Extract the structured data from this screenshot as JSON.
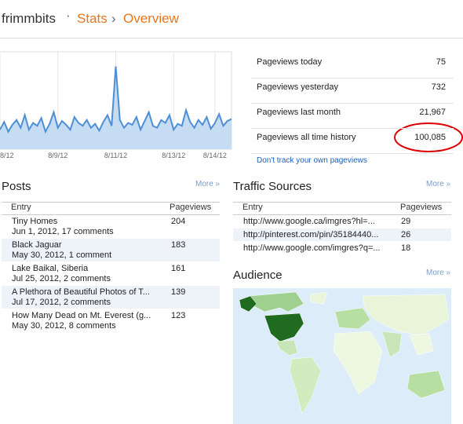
{
  "header": {
    "blog": "frimmbits",
    "separator": "·",
    "crumb": "Stats",
    "arrow": "›",
    "current": "Overview"
  },
  "chart": {
    "type": "area",
    "color": "#4d8fd6",
    "fill": "#c6dcf3",
    "ylim": [
      0,
      100
    ],
    "values": [
      20,
      28,
      18,
      25,
      30,
      22,
      35,
      20,
      27,
      24,
      32,
      18,
      26,
      38,
      22,
      29,
      25,
      20,
      33,
      27,
      24,
      30,
      22,
      26,
      19,
      28,
      35,
      24,
      85,
      30,
      22,
      27,
      25,
      33,
      20,
      29,
      38,
      24,
      22,
      30,
      27,
      35,
      20,
      26,
      24,
      40,
      28,
      22,
      30,
      25,
      33,
      21,
      27,
      36,
      24,
      29,
      31
    ],
    "xticks": [
      {
        "value": 0,
        "label": "8/12"
      },
      {
        "value": 14,
        "label": "8/9/12"
      },
      {
        "value": 28,
        "label": "8/11/12"
      },
      {
        "value": 42,
        "label": "8/13/12"
      },
      {
        "value": 52,
        "label": "8/14/12"
      }
    ]
  },
  "stats": [
    {
      "label": "Pageviews today",
      "value": "75"
    },
    {
      "label": "Pageviews yesterday",
      "value": "732"
    },
    {
      "label": "Pageviews last month",
      "value": "21,967"
    },
    {
      "label": "Pageviews all time history",
      "value": "100,085"
    }
  ],
  "track_link": "Don't track your own pageviews",
  "posts": {
    "title": "Posts",
    "more": "More »",
    "columns": [
      "Entry",
      "Pageviews"
    ],
    "rows": [
      {
        "title": "Tiny Homes",
        "meta": "Jun 1, 2012, 17 comments",
        "views": "204"
      },
      {
        "title": "Black Jaguar",
        "meta": "May 30, 2012, 1 comment",
        "views": "183"
      },
      {
        "title": "Lake Baikal, Siberia",
        "meta": "Jul 25, 2012, 2 comments",
        "views": "161"
      },
      {
        "title": "A Plethora of Beautiful Photos of T...",
        "meta": "Jul 17, 2012, 2 comments",
        "views": "139"
      },
      {
        "title": "How Many Dead on Mt. Everest (g...",
        "meta": "May 30, 2012, 8 comments",
        "views": "123"
      }
    ]
  },
  "traffic": {
    "title": "Traffic Sources",
    "more": "More »",
    "columns": [
      "Entry",
      "Pageviews"
    ],
    "rows": [
      {
        "url": "http://www.google.ca/imgres?hl=...",
        "views": "29"
      },
      {
        "url": "http://pinterest.com/pin/35184440...",
        "views": "26"
      },
      {
        "url": "http://www.google.com/imgres?q=...",
        "views": "18"
      }
    ]
  },
  "audience": {
    "title": "Audience",
    "more": "More »"
  }
}
